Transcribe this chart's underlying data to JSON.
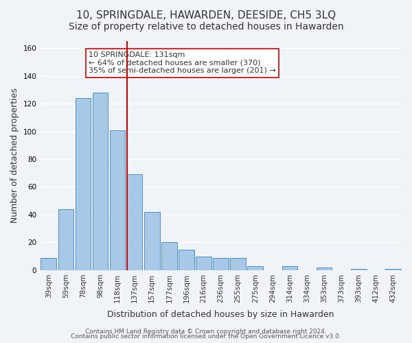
{
  "title": "10, SPRINGDALE, HAWARDEN, DEESIDE, CH5 3LQ",
  "subtitle": "Size of property relative to detached houses in Hawarden",
  "xlabel": "Distribution of detached houses by size in Hawarden",
  "ylabel": "Number of detached properties",
  "bar_labels": [
    "39sqm",
    "59sqm",
    "78sqm",
    "98sqm",
    "118sqm",
    "137sqm",
    "157sqm",
    "177sqm",
    "196sqm",
    "216sqm",
    "236sqm",
    "255sqm",
    "275sqm",
    "294sqm",
    "314sqm",
    "334sqm",
    "353sqm",
    "373sqm",
    "393sqm",
    "412sqm",
    "432sqm"
  ],
  "bar_values": [
    9,
    44,
    124,
    128,
    101,
    69,
    42,
    20,
    15,
    10,
    9,
    9,
    3,
    0,
    3,
    0,
    2,
    0,
    1,
    0,
    1
  ],
  "bar_color": "#a8c8e8",
  "bar_edge_color": "#4a90c4",
  "marker_index": 5,
  "marker_label": "137sqm",
  "marker_color": "#cc0000",
  "annotation_title": "10 SPRINGDALE: 131sqm",
  "annotation_line1": "← 64% of detached houses are smaller (370)",
  "annotation_line2": "35% of semi-detached houses are larger (201) →",
  "annotation_box_color": "#ffffff",
  "annotation_box_edge_color": "#cc0000",
  "ylim": [
    0,
    165
  ],
  "yticks": [
    0,
    20,
    40,
    60,
    80,
    100,
    120,
    140,
    160
  ],
  "footer_line1": "Contains HM Land Registry data © Crown copyright and database right 2024.",
  "footer_line2": "Contains public sector information licensed under the Open Government Licence v3.0.",
  "background_color": "#f0f4f8",
  "grid_color": "#ffffff",
  "title_fontsize": 11,
  "subtitle_fontsize": 10,
  "axis_label_fontsize": 9,
  "tick_fontsize": 7.5,
  "footer_fontsize": 6.5
}
